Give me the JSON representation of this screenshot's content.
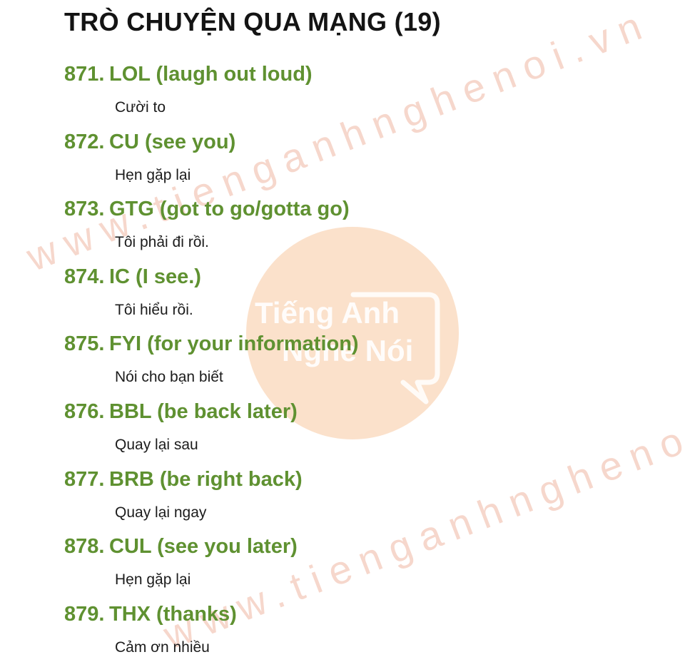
{
  "title": "TRÒ CHUYỆN QUA MẠNG (19)",
  "watermark": {
    "text": "www.tienganhnghenoi.vn",
    "logo_line1": "Tiếng Anh",
    "logo_line2": "Nghe Nói",
    "color": "#e89678"
  },
  "accent_color": "#5f9131",
  "entries": [
    {
      "number": "871.",
      "term": "LOL (laugh out loud)",
      "meaning": "Cười to"
    },
    {
      "number": "872.",
      "term": "CU (see you)",
      "meaning": "Hẹn gặp lại"
    },
    {
      "number": "873.",
      "term": "GTG (got to go/gotta go)",
      "meaning": "Tôi phải đi rồi."
    },
    {
      "number": "874.",
      "term": "IC (I see.)",
      "meaning": "Tôi hiểu rồi."
    },
    {
      "number": "875.",
      "term": "FYI (for your information)",
      "meaning": "Nói cho bạn biết"
    },
    {
      "number": "876.",
      "term": "BBL (be back later)",
      "meaning": "Quay lại sau"
    },
    {
      "number": "877.",
      "term": "BRB (be right back)",
      "meaning": "Quay lại ngay"
    },
    {
      "number": "878.",
      "term": "CUL (see you later)",
      "meaning": "Hẹn gặp lại"
    },
    {
      "number": "879.",
      "term": "THX (thanks)",
      "meaning": "Cảm ơn nhiều"
    }
  ]
}
